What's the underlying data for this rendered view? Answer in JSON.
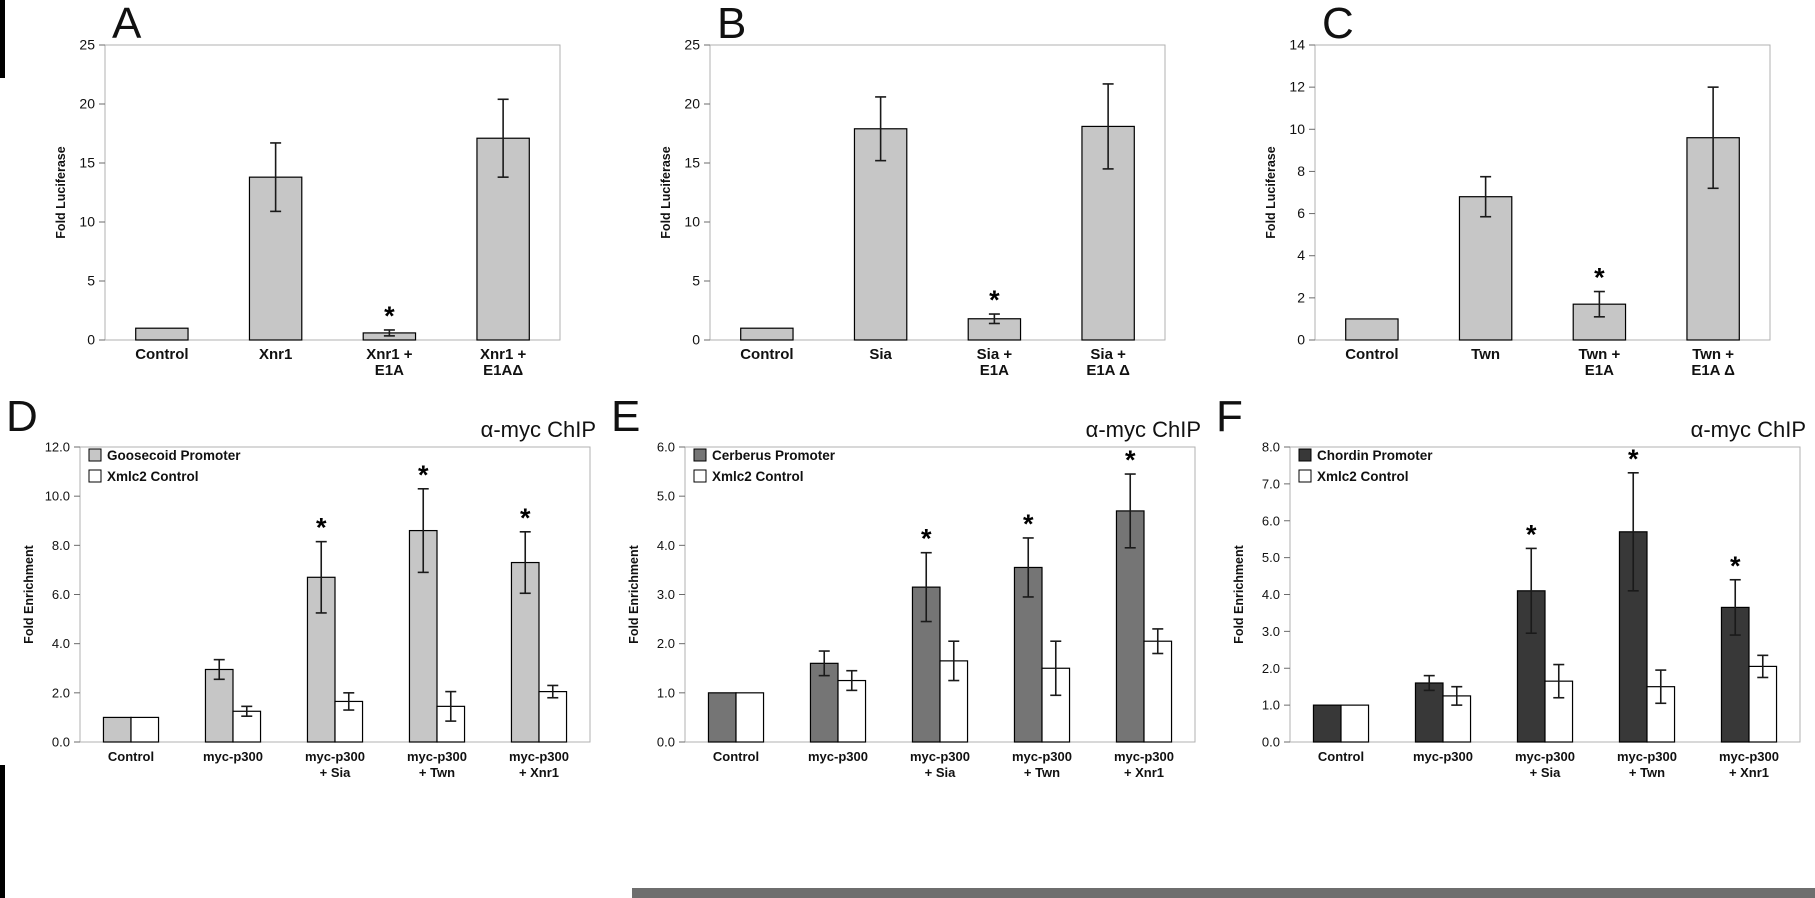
{
  "figure": {
    "background": "#ffffff",
    "plot_border_color": "#b1b1b1",
    "bar_stroke_color": "#000000",
    "grid": "off"
  },
  "chart_data": [
    {
      "panel": "A",
      "type": "bar",
      "title": "",
      "xlabel": "",
      "ylabel": "Fold Luciferase",
      "ylim": [
        0,
        25
      ],
      "ytick_step": 5,
      "ytick_decimals": 0,
      "legend": false,
      "categories": [
        "Control",
        "Xnr1",
        "Xnr1 +\nE1A",
        "Xnr1 +\nE1AΔ"
      ],
      "series": [
        {
          "name": "",
          "color": "#c6c6c6",
          "values": [
            1.0,
            13.8,
            0.6,
            17.1
          ],
          "errors": [
            0,
            2.9,
            0.25,
            3.3
          ],
          "significant": [
            false,
            false,
            true,
            false
          ]
        }
      ]
    },
    {
      "panel": "B",
      "type": "bar",
      "title": "",
      "xlabel": "",
      "ylabel": "Fold Luciferase",
      "ylim": [
        0,
        25
      ],
      "ytick_step": 5,
      "ytick_decimals": 0,
      "legend": false,
      "categories": [
        "Control",
        "Sia",
        "Sia +\nE1A",
        "Sia +\nE1A Δ"
      ],
      "series": [
        {
          "name": "",
          "color": "#c6c6c6",
          "values": [
            1.0,
            17.9,
            1.8,
            18.1
          ],
          "errors": [
            0,
            2.7,
            0.4,
            3.6
          ],
          "significant": [
            false,
            false,
            true,
            false
          ]
        }
      ]
    },
    {
      "panel": "C",
      "type": "bar",
      "title": "",
      "xlabel": "",
      "ylabel": "Fold Luciferase",
      "ylim": [
        0,
        14
      ],
      "ytick_step": 2,
      "ytick_decimals": 0,
      "legend": false,
      "categories": [
        "Control",
        "Twn",
        "Twn +\nE1A",
        "Twn +\nE1A Δ"
      ],
      "series": [
        {
          "name": "",
          "color": "#c6c6c6",
          "values": [
            1.0,
            6.8,
            1.7,
            9.6
          ],
          "errors": [
            0,
            0.95,
            0.6,
            2.4
          ],
          "significant": [
            false,
            false,
            true,
            false
          ]
        }
      ]
    },
    {
      "panel": "D",
      "type": "bar",
      "title": "α-myc ChIP",
      "xlabel": "",
      "ylabel": "Fold Enrichment",
      "ylim": [
        0,
        12
      ],
      "ytick_step": 2,
      "ytick_decimals": 1,
      "legend": true,
      "legend_position": "upper-left",
      "categories": [
        "Control",
        "myc-p300",
        "myc-p300\n+ Sia",
        "myc-p300\n+ Twn",
        "myc-p300\n+ Xnr1"
      ],
      "series": [
        {
          "name": "Goosecoid Promoter",
          "color": "#c6c6c6",
          "values": [
            1.0,
            2.95,
            6.7,
            8.6,
            7.3
          ],
          "errors": [
            0,
            0.4,
            1.45,
            1.7,
            1.25
          ],
          "significant": [
            false,
            false,
            true,
            true,
            true
          ]
        },
        {
          "name": "Xmlc2 Control",
          "color": "#ffffff",
          "values": [
            1.0,
            1.25,
            1.65,
            1.45,
            2.05
          ],
          "errors": [
            0,
            0.2,
            0.35,
            0.6,
            0.25
          ],
          "significant": [
            false,
            false,
            false,
            false,
            false
          ]
        }
      ]
    },
    {
      "panel": "E",
      "type": "bar",
      "title": "α-myc ChIP",
      "xlabel": "",
      "ylabel": "Fold Enrichment",
      "ylim": [
        0,
        6
      ],
      "ytick_step": 1,
      "ytick_decimals": 1,
      "legend": true,
      "legend_position": "upper-left",
      "categories": [
        "Control",
        "myc-p300",
        "myc-p300\n+ Sia",
        "myc-p300\n+ Twn",
        "myc-p300\n+ Xnr1"
      ],
      "series": [
        {
          "name": "Cerberus Promoter",
          "color": "#757575",
          "values": [
            1.0,
            1.6,
            3.15,
            3.55,
            4.7
          ],
          "errors": [
            0,
            0.25,
            0.7,
            0.6,
            0.75
          ],
          "significant": [
            false,
            false,
            true,
            true,
            true
          ]
        },
        {
          "name": "Xmlc2 Control",
          "color": "#ffffff",
          "values": [
            1.0,
            1.25,
            1.65,
            1.5,
            2.05
          ],
          "errors": [
            0,
            0.2,
            0.4,
            0.55,
            0.25
          ],
          "significant": [
            false,
            false,
            false,
            false,
            false
          ]
        }
      ]
    },
    {
      "panel": "F",
      "type": "bar",
      "title": "α-myc ChIP",
      "xlabel": "",
      "ylabel": "Fold Enrichment",
      "ylim": [
        0,
        8
      ],
      "ytick_step": 1,
      "ytick_decimals": 1,
      "legend": true,
      "legend_position": "upper-left",
      "categories": [
        "Control",
        "myc-p300",
        "myc-p300\n+ Sia",
        "myc-p300\n+ Twn",
        "myc-p300\n+ Xnr1"
      ],
      "series": [
        {
          "name": "Chordin Promoter",
          "color": "#383838",
          "values": [
            1.0,
            1.6,
            4.1,
            5.7,
            3.65
          ],
          "errors": [
            0,
            0.2,
            1.15,
            1.6,
            0.75
          ],
          "significant": [
            false,
            false,
            true,
            true,
            true
          ]
        },
        {
          "name": "Xmlc2 Control",
          "color": "#ffffff",
          "values": [
            1.0,
            1.25,
            1.65,
            1.5,
            2.05
          ],
          "errors": [
            0,
            0.25,
            0.45,
            0.45,
            0.3
          ],
          "significant": [
            false,
            false,
            false,
            false,
            false
          ]
        }
      ]
    }
  ]
}
